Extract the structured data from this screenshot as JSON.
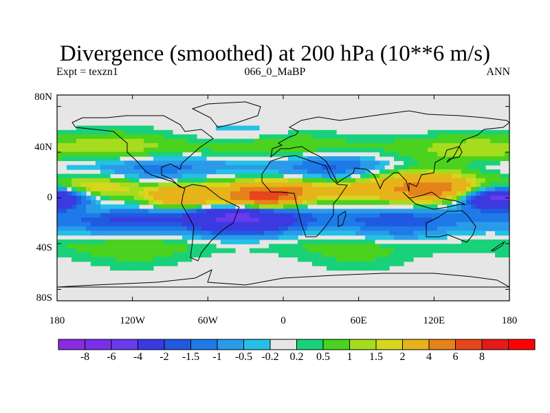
{
  "title": "Divergence (smoothed) at 200 hPa (10**6 m/s)",
  "subtitle_left": "Expt = texzn1",
  "subtitle_center": "066_0_MaBP",
  "subtitle_right": "ANN",
  "map_data": {
    "type": "filled_contour_map",
    "projection": "cylindrical_equidistant",
    "lon_range": [
      -180,
      180
    ],
    "lat_range": [
      -90,
      90
    ],
    "land_color": "#e6e6e6",
    "lat_ticks": [
      "80N",
      "40N",
      "0",
      "40S",
      "80S"
    ],
    "lon_ticks": [
      "180",
      "120W",
      "60W",
      "0",
      "60E",
      "120E",
      "180"
    ],
    "lat_tick_values": [
      80,
      40,
      0,
      -40,
      -80
    ],
    "lon_tick_values": [
      -180,
      -120,
      -60,
      0,
      60,
      120,
      180
    ],
    "features": [
      {
        "lon": -175,
        "lat": 0,
        "value": -2.5
      },
      {
        "lon": 165,
        "lat": 0,
        "value": -3
      },
      {
        "lon": -150,
        "lat": 8,
        "value": 1.8
      },
      {
        "lon": -150,
        "lat": -8,
        "value": 1.2
      },
      {
        "lon": -80,
        "lat": 0,
        "value": 4
      },
      {
        "lon": -20,
        "lat": 0,
        "value": 6
      },
      {
        "lon": 0,
        "lat": 5,
        "value": 3
      },
      {
        "lon": 120,
        "lat": 5,
        "value": 3.5
      },
      {
        "lon": 110,
        "lat": 15,
        "value": 2
      },
      {
        "lon": 60,
        "lat": 5,
        "value": 2
      },
      {
        "lon": -30,
        "lat": -15,
        "value": -2.5
      },
      {
        "lon": -130,
        "lat": -18,
        "value": -1.5
      },
      {
        "lon": -40,
        "lat": -20,
        "value": -1.5
      },
      {
        "lon": 90,
        "lat": -25,
        "value": -1.2
      },
      {
        "lon": -100,
        "lat": 22,
        "value": -1
      },
      {
        "lon": 40,
        "lat": 25,
        "value": -1.2
      },
      {
        "lon": -130,
        "lat": 45,
        "value": 0.8
      },
      {
        "lon": 0,
        "lat": 50,
        "value": 0.7
      },
      {
        "lon": 150,
        "lat": 40,
        "value": 0.8
      },
      {
        "lon": -20,
        "lat": 58,
        "value": -0.6
      },
      {
        "lon": 60,
        "lat": -48,
        "value": 0.6
      },
      {
        "lon": -120,
        "lat": -45,
        "value": 0.7
      }
    ]
  },
  "colorbar": {
    "colors": [
      "#8a2be2",
      "#7a2ee8",
      "#6a3aee",
      "#3a3ae0",
      "#1f5ae0",
      "#1e7ae8",
      "#2a9be8",
      "#25c0e6",
      "#e6e6e6",
      "#19d17a",
      "#4ad21e",
      "#a5dd1e",
      "#d6d61e",
      "#e6b41a",
      "#e6821a",
      "#e6461a",
      "#e61a1a",
      "#ff0000"
    ],
    "labels": [
      "-8",
      "-6",
      "-4",
      "-2",
      "-1.5",
      "-1",
      "-0.5",
      "-0.2",
      "0.2",
      "0.5",
      "1",
      "1.5",
      "2",
      "4",
      "6",
      "8"
    ]
  },
  "level_colors": {
    "lv_m8": "#8a2be2",
    "lv_m6": "#7a2ee8",
    "lv_m4": "#6a3aee",
    "lv_m2": "#3a3ae0",
    "lv_m15": "#1f5ae0",
    "lv_m1": "#1e7ae8",
    "lv_m05": "#2a9be8",
    "lv_m02": "#25c0e6",
    "lv_0": "#e6e6e6",
    "lv_02": "#19d17a",
    "lv_05": "#4ad21e",
    "lv_1": "#a5dd1e",
    "lv_15": "#d6d61e",
    "lv_2": "#e6b41a",
    "lv_4": "#e6821a",
    "lv_6": "#e6461a",
    "lv_8": "#e61a1a"
  }
}
